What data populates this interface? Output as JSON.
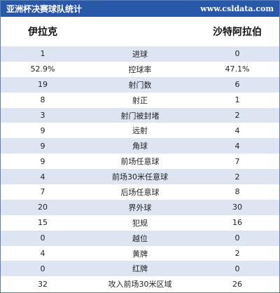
{
  "header": {
    "title": "亚洲杯决赛球队统计",
    "site": "www.csldata.com"
  },
  "teams": {
    "left": "伊拉克",
    "right": "沙特阿拉伯"
  },
  "rows": [
    {
      "left": "1",
      "stat": "进球",
      "right": "0"
    },
    {
      "left": "52.9%",
      "stat": "控球率",
      "right": "47.1%"
    },
    {
      "left": "19",
      "stat": "射门数",
      "right": "6"
    },
    {
      "left": "8",
      "stat": "射正",
      "right": "1"
    },
    {
      "left": "3",
      "stat": "射门被封堵",
      "right": "2"
    },
    {
      "left": "9",
      "stat": "远射",
      "right": "4"
    },
    {
      "left": "9",
      "stat": "角球",
      "right": "4"
    },
    {
      "left": "9",
      "stat": "前场任意球",
      "right": "7"
    },
    {
      "left": "4",
      "stat": "前场30米任意球",
      "right": "2"
    },
    {
      "left": "7",
      "stat": "后场任意球",
      "right": "8"
    },
    {
      "left": "20",
      "stat": "界外球",
      "right": "30"
    },
    {
      "left": "15",
      "stat": "犯规",
      "right": "16"
    },
    {
      "left": "0",
      "stat": "越位",
      "right": "0"
    },
    {
      "left": "4",
      "stat": "黄牌",
      "right": "2"
    },
    {
      "left": "0",
      "stat": "红牌",
      "right": "0"
    },
    {
      "left": "32",
      "stat": "攻入前场30米区域",
      "right": "26"
    }
  ]
}
